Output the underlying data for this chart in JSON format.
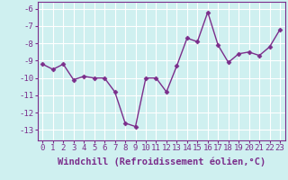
{
  "x": [
    0,
    1,
    2,
    3,
    4,
    5,
    6,
    7,
    8,
    9,
    10,
    11,
    12,
    13,
    14,
    15,
    16,
    17,
    18,
    19,
    20,
    21,
    22,
    23
  ],
  "y": [
    -9.2,
    -9.5,
    -9.2,
    -10.1,
    -9.9,
    -10.0,
    -10.0,
    -10.8,
    -12.6,
    -12.8,
    -10.0,
    -10.0,
    -10.8,
    -9.3,
    -7.7,
    -7.9,
    -6.2,
    -8.1,
    -9.1,
    -8.6,
    -8.5,
    -8.7,
    -8.2,
    -7.2
  ],
  "line_color": "#7b2d8b",
  "marker": "D",
  "marker_size": 2.5,
  "bg_color": "#cff0f0",
  "grid_color": "#b0e0e0",
  "xlabel": "Windchill (Refroidissement éolien,°C)",
  "xlabel_fontsize": 7.5,
  "ytick_labels": [
    "-6",
    "-7",
    "-8",
    "-9",
    "-10",
    "-11",
    "-12",
    "-13"
  ],
  "ytick_values": [
    -6,
    -7,
    -8,
    -9,
    -10,
    -11,
    -12,
    -13
  ],
  "ylim": [
    -13.6,
    -5.6
  ],
  "xlim": [
    -0.5,
    23.5
  ],
  "xtick_labels": [
    "0",
    "1",
    "2",
    "3",
    "4",
    "5",
    "6",
    "7",
    "8",
    "9",
    "10",
    "11",
    "12",
    "13",
    "14",
    "15",
    "16",
    "17",
    "18",
    "19",
    "20",
    "21",
    "22",
    "23"
  ],
  "tick_fontsize": 6.5,
  "line_width": 1.0
}
